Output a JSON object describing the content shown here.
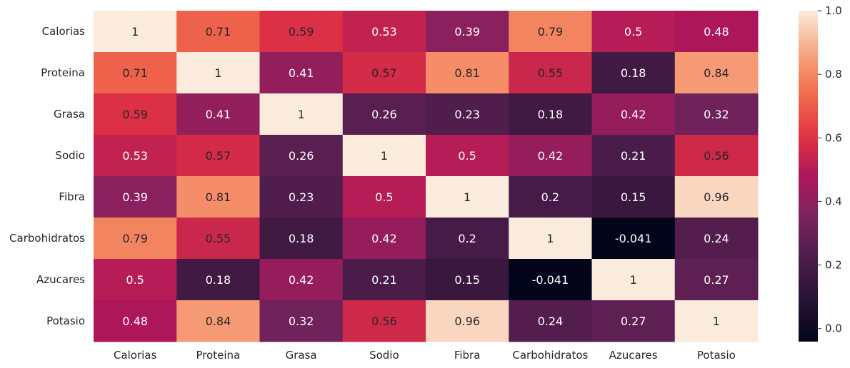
{
  "chart_data": {
    "type": "heatmap",
    "title": "",
    "xlabel": "",
    "ylabel": "",
    "x_categories": [
      "Calorias",
      "Proteina",
      "Grasa",
      "Sodio",
      "Fibra",
      "Carbohidratos",
      "Azucares",
      "Potasio"
    ],
    "y_categories": [
      "Calorias",
      "Proteina",
      "Grasa",
      "Sodio",
      "Fibra",
      "Carbohidratos",
      "Azucares",
      "Potasio"
    ],
    "values": [
      [
        1,
        0.71,
        0.59,
        0.53,
        0.39,
        0.79,
        0.5,
        0.48
      ],
      [
        0.71,
        1,
        0.41,
        0.57,
        0.81,
        0.55,
        0.18,
        0.84
      ],
      [
        0.59,
        0.41,
        1,
        0.26,
        0.23,
        0.18,
        0.42,
        0.32
      ],
      [
        0.53,
        0.57,
        0.26,
        1,
        0.5,
        0.42,
        0.21,
        0.56
      ],
      [
        0.39,
        0.81,
        0.23,
        0.5,
        1,
        0.2,
        0.15,
        0.96
      ],
      [
        0.79,
        0.55,
        0.18,
        0.42,
        0.2,
        1,
        -0.041,
        0.24
      ],
      [
        0.5,
        0.18,
        0.42,
        0.21,
        0.15,
        -0.041,
        1,
        0.27
      ],
      [
        0.48,
        0.84,
        0.32,
        0.56,
        0.96,
        0.24,
        0.27,
        1
      ]
    ],
    "value_labels": [
      [
        "1",
        "0.71",
        "0.59",
        "0.53",
        "0.39",
        "0.79",
        "0.5",
        "0.48"
      ],
      [
        "0.71",
        "1",
        "0.41",
        "0.57",
        "0.81",
        "0.55",
        "0.18",
        "0.84"
      ],
      [
        "0.59",
        "0.41",
        "1",
        "0.26",
        "0.23",
        "0.18",
        "0.42",
        "0.32"
      ],
      [
        "0.53",
        "0.57",
        "0.26",
        "1",
        "0.5",
        "0.42",
        "0.21",
        "0.56"
      ],
      [
        "0.39",
        "0.81",
        "0.23",
        "0.5",
        "1",
        "0.2",
        "0.15",
        "0.96"
      ],
      [
        "0.79",
        "0.55",
        "0.18",
        "0.42",
        "0.2",
        "1",
        "-0.041",
        "0.24"
      ],
      [
        "0.5",
        "0.18",
        "0.42",
        "0.21",
        "0.15",
        "-0.041",
        "1",
        "0.27"
      ],
      [
        "0.48",
        "0.84",
        "0.32",
        "0.56",
        "0.96",
        "0.24",
        "0.27",
        "1"
      ]
    ],
    "colormap": "rocket",
    "vmin": -0.041,
    "vmax": 1,
    "colorbar": {
      "ticks": [
        0.0,
        0.2,
        0.4,
        0.6,
        0.8,
        1.0
      ],
      "tick_labels": [
        "0.0",
        "0.2",
        "0.4",
        "0.6",
        "0.8",
        "1.0"
      ],
      "placement": "right"
    },
    "grid": false
  }
}
